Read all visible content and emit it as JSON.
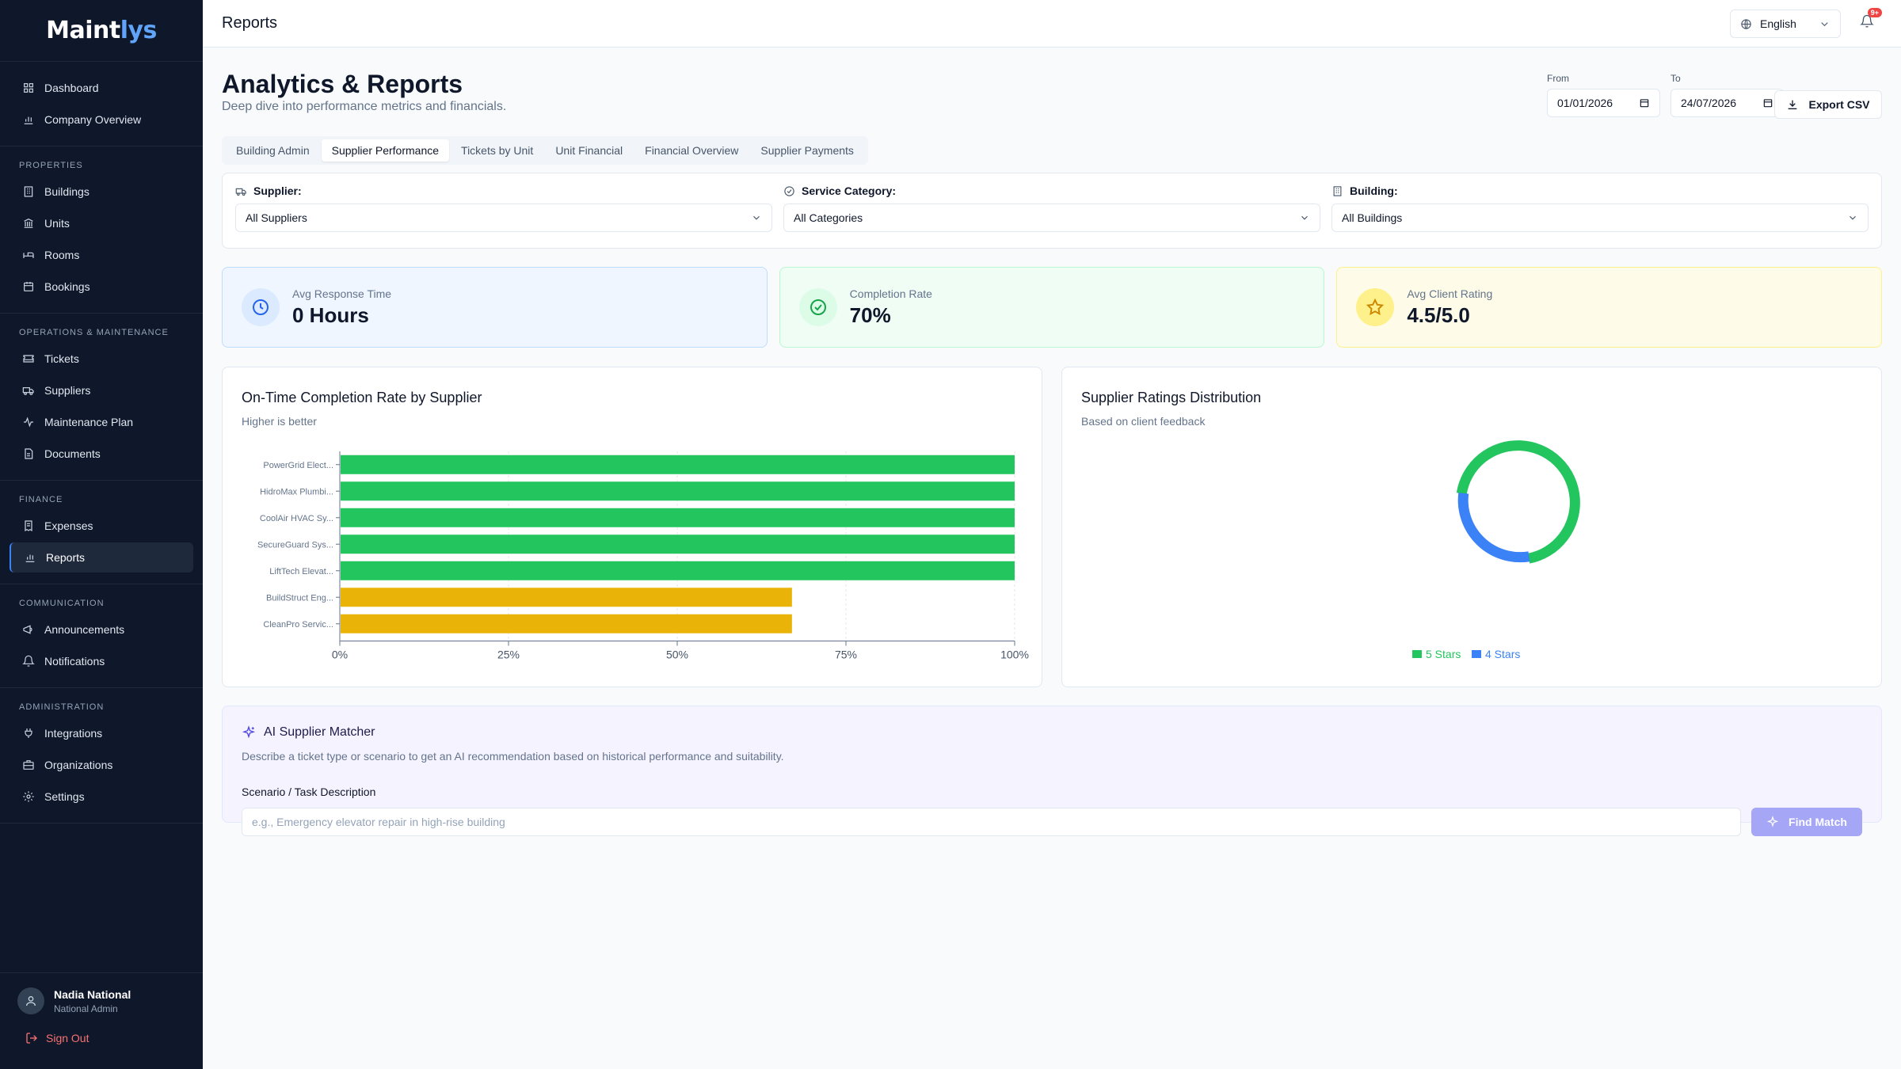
{
  "brand": {
    "name_main": "Maint",
    "name_accent": "lys"
  },
  "topbar": {
    "title": "Reports",
    "language": "English",
    "notification_badge": "9+"
  },
  "sidebar": {
    "top_items": [
      {
        "label": "Dashboard",
        "icon": "grid-icon"
      },
      {
        "label": "Company Overview",
        "icon": "bar-chart-icon"
      }
    ],
    "groups": [
      {
        "heading": "PROPERTIES",
        "items": [
          {
            "label": "Buildings",
            "icon": "building-icon"
          },
          {
            "label": "Units",
            "icon": "columns-icon"
          },
          {
            "label": "Rooms",
            "icon": "bed-icon"
          },
          {
            "label": "Bookings",
            "icon": "calendar-icon"
          }
        ]
      },
      {
        "heading": "OPERATIONS & MAINTENANCE",
        "items": [
          {
            "label": "Tickets",
            "icon": "ticket-icon"
          },
          {
            "label": "Suppliers",
            "icon": "truck-icon"
          },
          {
            "label": "Maintenance Plan",
            "icon": "activity-icon"
          },
          {
            "label": "Documents",
            "icon": "file-icon"
          }
        ]
      },
      {
        "heading": "FINANCE",
        "items": [
          {
            "label": "Expenses",
            "icon": "receipt-icon"
          },
          {
            "label": "Reports",
            "icon": "bar-chart-icon",
            "active": true
          }
        ]
      },
      {
        "heading": "COMMUNICATION",
        "items": [
          {
            "label": "Announcements",
            "icon": "megaphone-icon"
          },
          {
            "label": "Notifications",
            "icon": "bell-icon"
          }
        ]
      },
      {
        "heading": "ADMINISTRATION",
        "items": [
          {
            "label": "Integrations",
            "icon": "plug-icon"
          },
          {
            "label": "Organizations",
            "icon": "briefcase-icon"
          },
          {
            "label": "Settings",
            "icon": "gear-icon"
          }
        ]
      }
    ],
    "user": {
      "name": "Nadia National",
      "role": "National Admin",
      "signout": "Sign Out"
    }
  },
  "page": {
    "title": "Analytics & Reports",
    "subtitle": "Deep dive into performance metrics and financials.",
    "from_label": "From",
    "from_value": "01/01/2026",
    "to_label": "To",
    "to_value": "24/07/2026",
    "export_label": "Export CSV"
  },
  "tabs": [
    {
      "label": "Building Admin"
    },
    {
      "label": "Supplier Performance",
      "active": true
    },
    {
      "label": "Tickets by Unit"
    },
    {
      "label": "Unit Financial"
    },
    {
      "label": "Financial Overview"
    },
    {
      "label": "Supplier Payments"
    }
  ],
  "filters": {
    "supplier_label": "Supplier:",
    "supplier_value": "All Suppliers",
    "category_label": "Service Category:",
    "category_value": "All Categories",
    "building_label": "Building:",
    "building_value": "All Buildings"
  },
  "kpis": [
    {
      "label": "Avg Response Time",
      "value": "0 Hours",
      "icon": "clock-icon",
      "bg": "#eff6ff",
      "border": "#bfdbfe",
      "icon_bg": "#dbeafe",
      "icon_color": "#2563eb"
    },
    {
      "label": "Completion Rate",
      "value": "70%",
      "icon": "check-circle-icon",
      "bg": "#f0fdf4",
      "border": "#bbf7d0",
      "icon_bg": "#dcfce7",
      "icon_color": "#16a34a"
    },
    {
      "label": "Avg Client Rating",
      "value": "4.5/5.0",
      "icon": "star-icon",
      "bg": "#fefce8",
      "border": "#fef08a",
      "icon_bg": "#fef08a",
      "icon_color": "#ca8a04"
    }
  ],
  "bar_card": {
    "title": "On-Time Completion Rate by Supplier",
    "subtitle": "Higher is better"
  },
  "donut_card": {
    "title": "Supplier Ratings Distribution",
    "subtitle": "Based on client feedback"
  },
  "chart_data": [
    {
      "type": "bar",
      "orientation": "horizontal",
      "title": "On-Time Completion Rate by Supplier",
      "categories": [
        "PowerGrid Elect...",
        "HidroMax Plumbi...",
        "CoolAir HVAC Sy...",
        "SecureGuard Sys...",
        "LiftTech Elevat...",
        "BuildStruct Eng...",
        "CleanPro Servic..."
      ],
      "values": [
        100,
        100,
        100,
        100,
        100,
        67,
        67
      ],
      "colors": [
        "#22c55e",
        "#22c55e",
        "#22c55e",
        "#22c55e",
        "#22c55e",
        "#eab308",
        "#eab308"
      ],
      "xlim": [
        0,
        100
      ],
      "xticks": [
        "0%",
        "25%",
        "50%",
        "75%",
        "100%"
      ],
      "grid": true
    },
    {
      "type": "pie",
      "donut": true,
      "title": "Supplier Ratings Distribution",
      "labels": [
        "5 Stars",
        "4 Stars"
      ],
      "values": [
        70,
        30
      ],
      "colors": [
        "#22c55e",
        "#3b82f6"
      ],
      "legend": "bottom"
    }
  ],
  "ai": {
    "title": "AI Supplier Matcher",
    "description": "Describe a ticket type or scenario to get an AI recommendation based on historical performance and suitability.",
    "input_label": "Scenario / Task Description",
    "placeholder": "e.g., Emergency elevator repair in high-rise building",
    "button": "Find Match"
  }
}
